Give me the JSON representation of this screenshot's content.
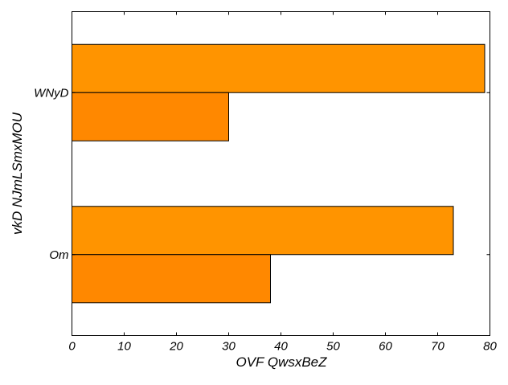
{
  "chart_data": {
    "type": "bar",
    "orientation": "horizontal",
    "categories": [
      "Om",
      "WNyD"
    ],
    "series": [
      {
        "values": [
          73,
          79
        ],
        "color": "#ff9400"
      },
      {
        "values": [
          38,
          30
        ],
        "color": "#ff8800"
      }
    ],
    "xlabel": "OVF QwsxBeZ",
    "ylabel": "vkD NJmLSmxMOU",
    "xlim": [
      0,
      80
    ],
    "xticks": [
      0,
      10,
      20,
      30,
      40,
      50,
      60,
      70,
      80
    ],
    "grid": false,
    "legend": "none"
  }
}
